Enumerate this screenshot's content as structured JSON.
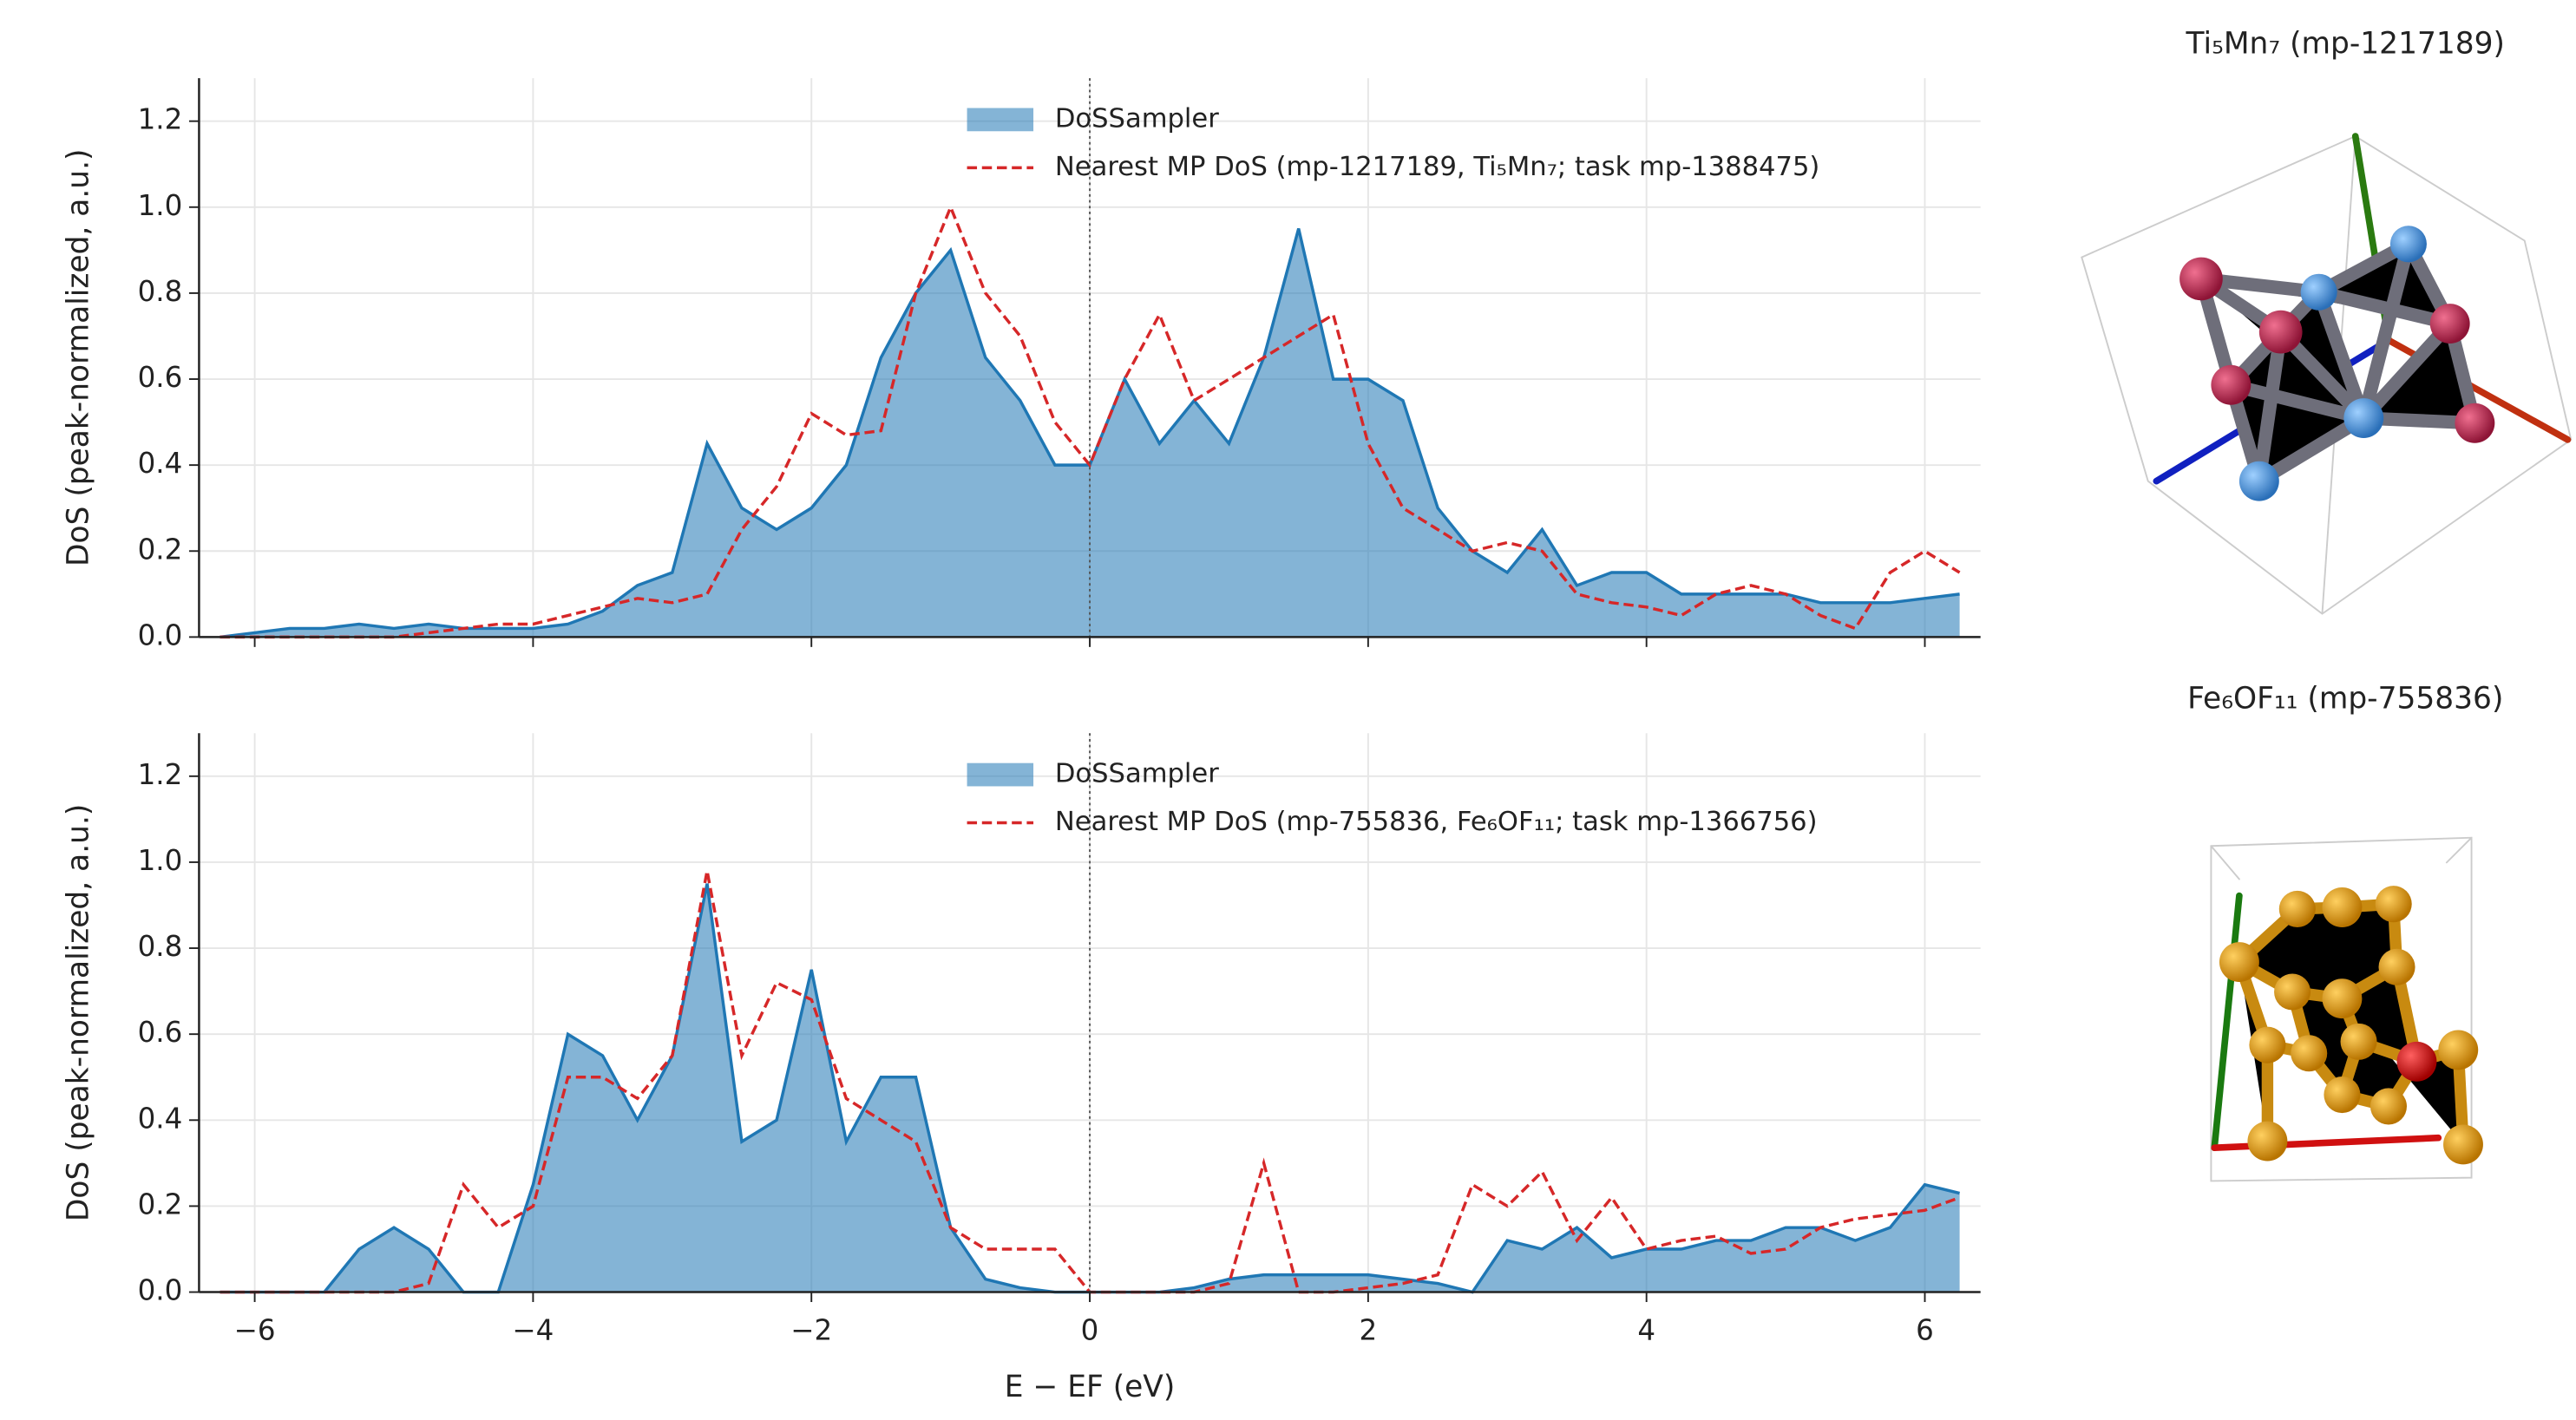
{
  "chart_data": [
    {
      "type": "area_line",
      "ylabel": "DoS (peak-normalized, a.u.)",
      "structure_title": "Ti₅Mn₇ (mp-1217189)",
      "xlim": [
        -6.4,
        6.4
      ],
      "ylim": [
        0,
        1.3
      ],
      "xticks": [
        -6,
        -4,
        -2,
        0,
        2,
        4,
        6
      ],
      "yticks": [
        {
          "value": 0,
          "label": "0.0"
        },
        0.2,
        0.4,
        0.6,
        0.8,
        {
          "value": 1,
          "label": "1.0"
        },
        1.2
      ],
      "grid": true,
      "fermi_line": 0,
      "x": [
        -6.25,
        -6,
        -5.75,
        -5.5,
        -5.25,
        -5,
        -4.75,
        -4.5,
        -4.25,
        -4,
        -3.75,
        -3.5,
        -3.25,
        -3,
        -2.75,
        -2.5,
        -2.25,
        -2,
        -1.75,
        -1.5,
        -1.25,
        -1,
        -0.75,
        -0.5,
        -0.25,
        0,
        0.25,
        0.5,
        0.75,
        1,
        1.25,
        1.5,
        1.75,
        2,
        2.25,
        2.5,
        2.75,
        3,
        3.25,
        3.5,
        3.75,
        4,
        4.25,
        4.5,
        4.75,
        5,
        5.25,
        5.5,
        5.75,
        6,
        6.25
      ],
      "series": [
        {
          "name": "DoSSampler",
          "color": "#1f77b4",
          "style": "area",
          "values": [
            0,
            0.01,
            0.02,
            0.02,
            0.03,
            0.02,
            0.03,
            0.02,
            0.02,
            0.02,
            0.03,
            0.06,
            0.12,
            0.15,
            0.45,
            0.3,
            0.25,
            0.3,
            0.4,
            0.65,
            0.8,
            0.9,
            0.65,
            0.55,
            0.4,
            0.4,
            0.6,
            0.45,
            0.55,
            0.45,
            0.65,
            0.95,
            0.6,
            0.6,
            0.55,
            0.3,
            0.2,
            0.15,
            0.25,
            0.12,
            0.15,
            0.15,
            0.1,
            0.1,
            0.1,
            0.1,
            0.08,
            0.08,
            0.08,
            0.09,
            0.1
          ]
        },
        {
          "name": "Nearest MP DoS (mp-1217189, Ti₅Mn₇; task mp-1388475)",
          "color": "#d62728",
          "style": "dashed",
          "values": [
            0,
            0,
            0,
            0,
            0,
            0,
            0.01,
            0.02,
            0.03,
            0.03,
            0.05,
            0.07,
            0.09,
            0.08,
            0.1,
            0.25,
            0.35,
            0.52,
            0.47,
            0.48,
            0.8,
            1.0,
            0.8,
            0.7,
            0.5,
            0.4,
            0.6,
            0.75,
            0.55,
            0.6,
            0.65,
            0.7,
            0.75,
            0.45,
            0.3,
            0.25,
            0.2,
            0.22,
            0.2,
            0.1,
            0.08,
            0.07,
            0.05,
            0.1,
            0.12,
            0.1,
            0.05,
            0.02,
            0.15,
            0.2,
            0.15
          ]
        }
      ]
    },
    {
      "type": "area_line",
      "ylabel": "DoS (peak-normalized, a.u.)",
      "xlabel": "E − EF (eV)",
      "structure_title": "Fe₆OF₁₁ (mp-755836)",
      "xlim": [
        -6.4,
        6.4
      ],
      "ylim": [
        0,
        1.3
      ],
      "xticks": [
        {
          "value": -6,
          "label": "−6"
        },
        {
          "value": -4,
          "label": "−4"
        },
        {
          "value": -2,
          "label": "−2"
        },
        0,
        2,
        4,
        6
      ],
      "yticks": [
        {
          "value": 0,
          "label": "0.0"
        },
        0.2,
        0.4,
        0.6,
        0.8,
        {
          "value": 1,
          "label": "1.0"
        },
        1.2
      ],
      "grid": true,
      "fermi_line": 0,
      "x": [
        -6.25,
        -6,
        -5.75,
        -5.5,
        -5.25,
        -5,
        -4.75,
        -4.5,
        -4.25,
        -4,
        -3.75,
        -3.5,
        -3.25,
        -3,
        -2.75,
        -2.5,
        -2.25,
        -2,
        -1.75,
        -1.5,
        -1.25,
        -1,
        -0.75,
        -0.5,
        -0.25,
        0,
        0.25,
        0.5,
        0.75,
        1,
        1.25,
        1.5,
        1.75,
        2,
        2.25,
        2.5,
        2.75,
        3,
        3.25,
        3.5,
        3.75,
        4,
        4.25,
        4.5,
        4.75,
        5,
        5.25,
        5.5,
        5.75,
        6,
        6.25
      ],
      "series": [
        {
          "name": "DoSSampler",
          "color": "#1f77b4",
          "style": "area",
          "values": [
            0,
            0,
            0,
            0,
            0.1,
            0.15,
            0.1,
            0,
            0,
            0.25,
            0.6,
            0.55,
            0.4,
            0.55,
            0.95,
            0.35,
            0.4,
            0.75,
            0.35,
            0.5,
            0.5,
            0.15,
            0.03,
            0.01,
            0,
            0,
            0,
            0,
            0.01,
            0.03,
            0.04,
            0.04,
            0.04,
            0.04,
            0.03,
            0.02,
            0,
            0.12,
            0.1,
            0.15,
            0.08,
            0.1,
            0.1,
            0.12,
            0.12,
            0.15,
            0.15,
            0.12,
            0.15,
            0.25,
            0.23
          ]
        },
        {
          "name": "Nearest MP DoS (mp-755836, Fe₆OF₁₁; task mp-1366756)",
          "color": "#d62728",
          "style": "dashed",
          "values": [
            0,
            0,
            0,
            0,
            0,
            0,
            0.02,
            0.25,
            0.15,
            0.2,
            0.5,
            0.5,
            0.45,
            0.55,
            0.98,
            0.55,
            0.72,
            0.68,
            0.45,
            0.4,
            0.35,
            0.15,
            0.1,
            0.1,
            0.1,
            0,
            0,
            0,
            0,
            0.02,
            0.3,
            0,
            0,
            0.01,
            0.02,
            0.04,
            0.25,
            0.2,
            0.28,
            0.12,
            0.22,
            0.1,
            0.12,
            0.13,
            0.09,
            0.1,
            0.15,
            0.17,
            0.18,
            0.19,
            0.22
          ]
        }
      ]
    }
  ]
}
